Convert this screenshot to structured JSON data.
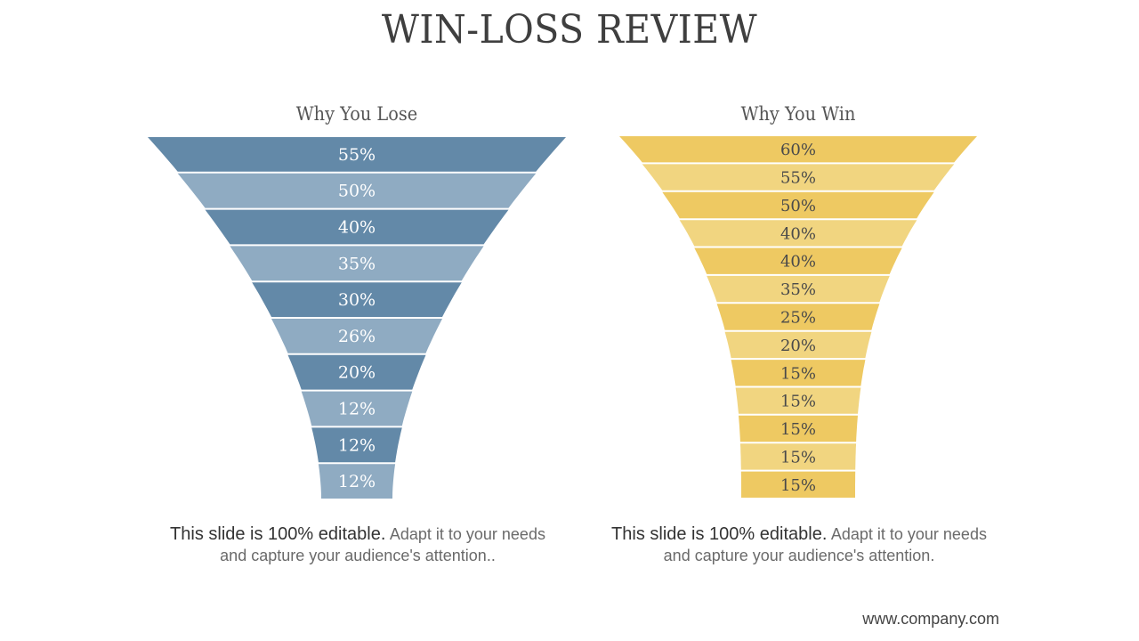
{
  "slide": {
    "title": "WIN-LOSS REVIEW",
    "footer": "www.company.com"
  },
  "lose": {
    "heading": "Why You Lose",
    "caption_lead": "This slide is 100% editable.",
    "caption_rest": "Adapt it to your needs and capture your audience's attention..",
    "colors": [
      "#6389a8",
      "#8fabc2"
    ],
    "label_color": "#ffffff",
    "segments": [
      "55%",
      "50%",
      "40%",
      "35%",
      "30%",
      "26%",
      "20%",
      "12%",
      "12%",
      "12%"
    ]
  },
  "win": {
    "heading": "Why You Win",
    "caption_lead": "This slide is 100% editable.",
    "caption_rest": "Adapt it to your needs and capture your audience's attention.",
    "colors": [
      "#eec962",
      "#f1d580"
    ],
    "label_color": "#4a4a4a",
    "segments": [
      "60%",
      "55%",
      "50%",
      "40%",
      "40%",
      "35%",
      "25%",
      "20%",
      "15%",
      "15%",
      "15%",
      "15%",
      "15%"
    ]
  }
}
